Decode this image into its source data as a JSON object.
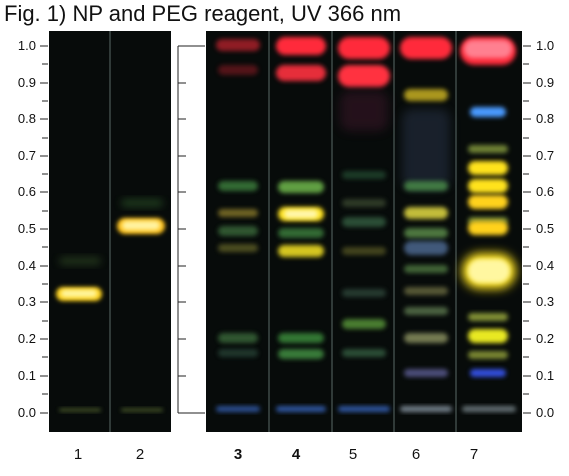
{
  "figure": {
    "title": "Fig. 1) NP and PEG reagent, UV 366 nm"
  },
  "rf_scale": [
    "1.0",
    "0.9",
    "0.8",
    "0.7",
    "0.6",
    "0.5",
    "0.4",
    "0.3",
    "0.2",
    "0.1",
    "0.0"
  ],
  "lanes": [
    {
      "label": "1",
      "bold": false
    },
    {
      "label": "2",
      "bold": false
    },
    {
      "label": "3",
      "bold": true
    },
    {
      "label": "4",
      "bold": true
    },
    {
      "label": "5",
      "bold": false
    },
    {
      "label": "6",
      "bold": false
    },
    {
      "label": "7",
      "bold": false
    }
  ],
  "colors": {
    "plate_background": "#070b0a",
    "red_band": "#ff2a3a",
    "yellow_band": "#ffe21c",
    "green_band": "#7ec05a",
    "blue_band": "#4a86ff",
    "orange_band": "#ffb020"
  }
}
